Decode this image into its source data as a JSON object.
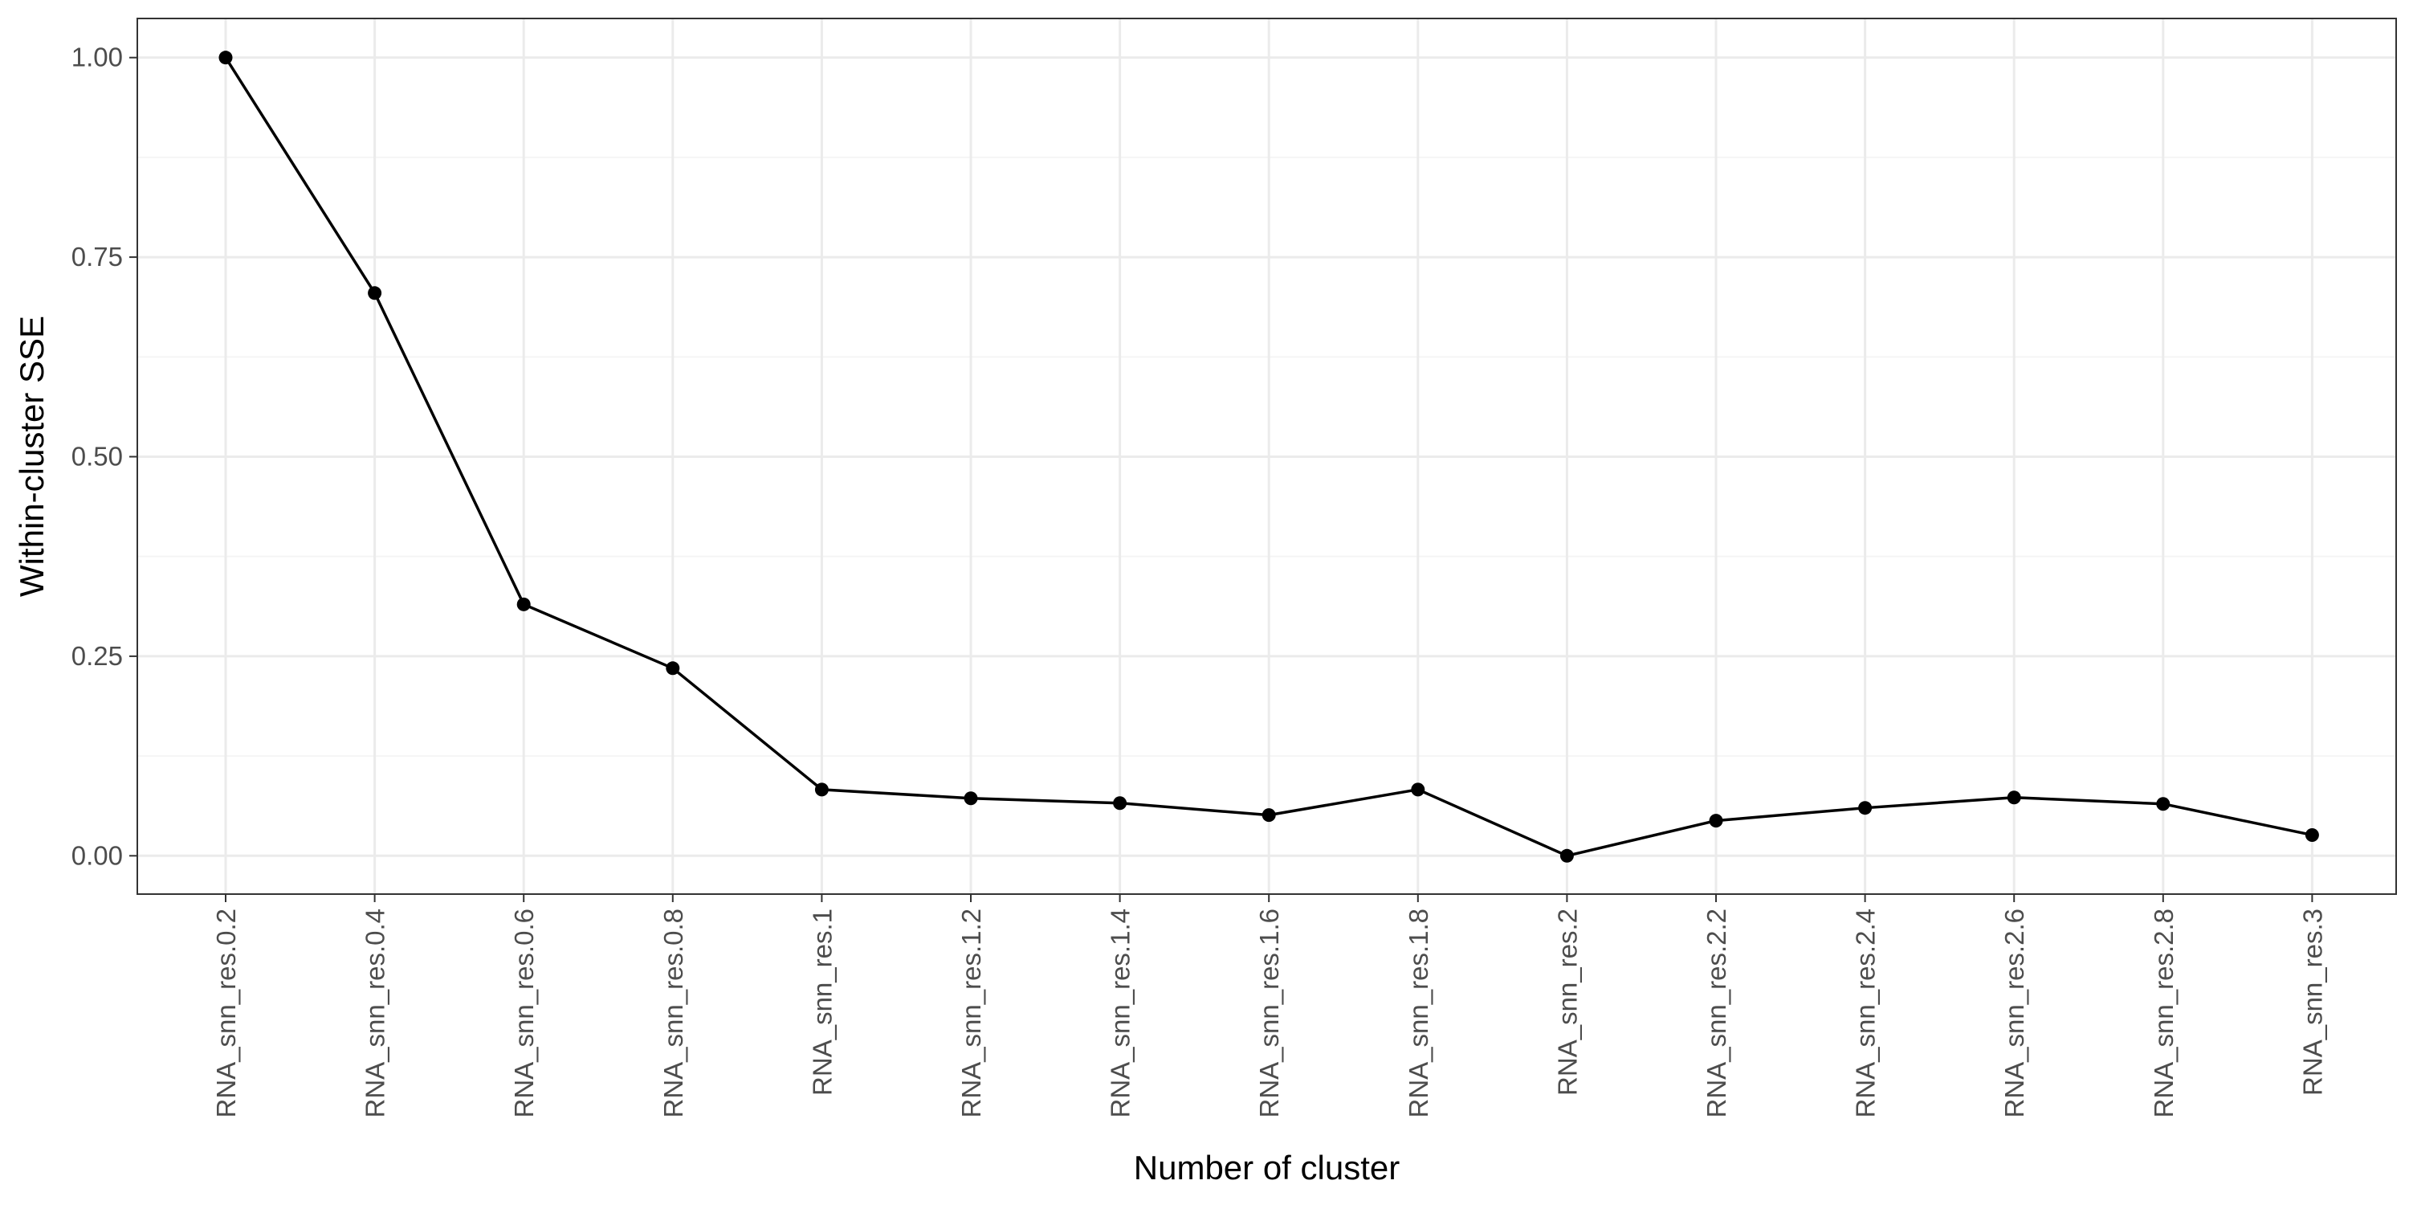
{
  "chart_data": {
    "type": "line",
    "title": "",
    "xlabel": "Number of cluster",
    "ylabel": "Within-cluster SSE",
    "categories": [
      "RNA_snn_res.0.2",
      "RNA_snn_res.0.4",
      "RNA_snn_res.0.6",
      "RNA_snn_res.0.8",
      "RNA_snn_res.1",
      "RNA_snn_res.1.2",
      "RNA_snn_res.1.4",
      "RNA_snn_res.1.6",
      "RNA_snn_res.1.8",
      "RNA_snn_res.2",
      "RNA_snn_res.2.2",
      "RNA_snn_res.2.4",
      "RNA_snn_res.2.6",
      "RNA_snn_res.2.8",
      "RNA_snn_res.3"
    ],
    "series": [
      {
        "values": [
          1.0,
          0.705,
          0.315,
          0.235,
          0.083,
          0.072,
          0.066,
          0.051,
          0.083,
          0.0,
          0.044,
          0.06,
          0.073,
          0.065,
          0.026
        ]
      }
    ],
    "ylim": [
      -0.048,
      1.049
    ],
    "yticks": [
      0.0,
      0.25,
      0.5,
      0.75,
      1.0
    ],
    "ytick_labels": [
      "0.00",
      "0.25",
      "0.50",
      "0.75",
      "1.00"
    ],
    "grid": true,
    "legend": "none",
    "colors": {
      "line": "#000000",
      "point": "#000000",
      "grid_major": "#ebebeb",
      "grid_minor": "#f5f5f5",
      "panel_border": "#333333",
      "tick_text": "#4d4d4d",
      "background": "#ffffff"
    }
  }
}
